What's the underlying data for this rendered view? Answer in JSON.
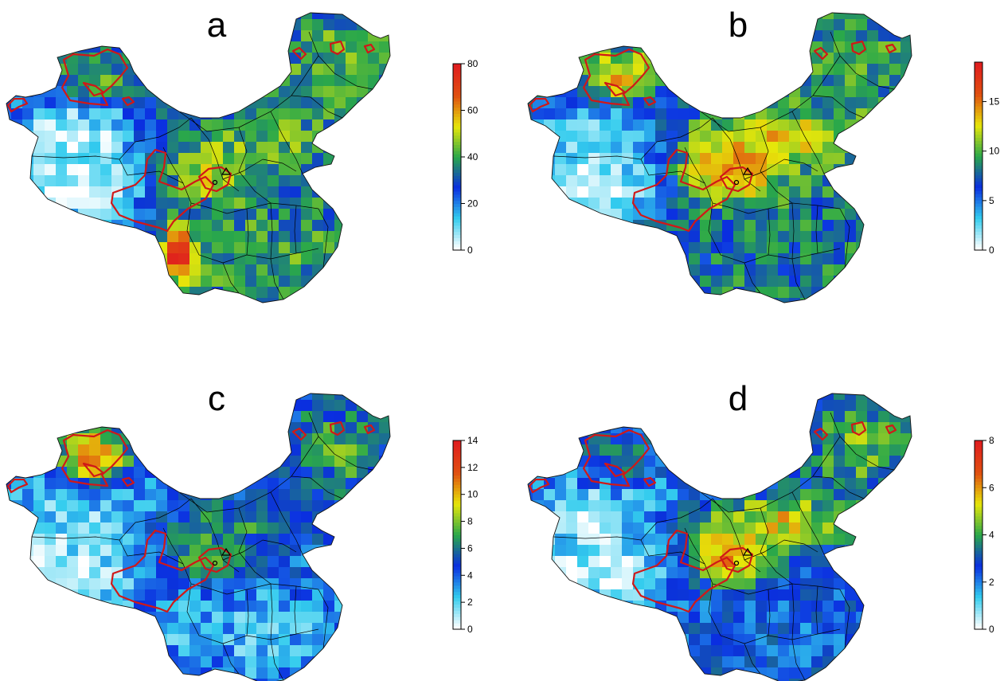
{
  "colors": {
    "scale": [
      "#ffffff",
      "#33ccee",
      "#0a2ee0",
      "#2aa84a",
      "#e6e60a",
      "#e05010",
      "#e01e1e"
    ],
    "region_outline": "#d01818",
    "province_border": "#000000"
  },
  "panels": [
    {
      "id": "a",
      "label": "a",
      "colorbar_ticks": [
        "0",
        "20",
        "40",
        "60",
        "80"
      ],
      "pattern": {
        "base": 0.42,
        "west": 0.05,
        "tibet": 0.02,
        "xinjiang_north": 0.55,
        "plateau_band": 0.65,
        "south": 0.5,
        "northeast": 0.55,
        "hotspot_sw": 0.95
      }
    },
    {
      "id": "b",
      "label": "b",
      "colorbar_ticks": [
        "0",
        "5",
        "10",
        "15"
      ],
      "pattern": {
        "base": 0.45,
        "west": 0.12,
        "tibet": 0.04,
        "xinjiang_north": 0.7,
        "plateau_band": 0.85,
        "south": 0.42,
        "northeast": 0.5,
        "hotspot_sw": 0.4
      }
    },
    {
      "id": "c",
      "label": "c",
      "colorbar_ticks": [
        "0",
        "2",
        "4",
        "6",
        "8",
        "10",
        "12",
        "14"
      ],
      "pattern": {
        "base": 0.3,
        "west": 0.14,
        "tibet": 0.06,
        "xinjiang_north": 0.85,
        "plateau_band": 0.55,
        "south": 0.18,
        "northeast": 0.5,
        "hotspot_sw": 0.2
      }
    },
    {
      "id": "d",
      "label": "d",
      "colorbar_ticks": [
        "0",
        "2",
        "4",
        "6",
        "8"
      ],
      "pattern": {
        "base": 0.32,
        "west": 0.1,
        "tibet": 0.05,
        "xinjiang_north": 0.45,
        "plateau_band": 0.8,
        "south": 0.3,
        "northeast": 0.55,
        "hotspot_sw": 0.3
      }
    }
  ]
}
